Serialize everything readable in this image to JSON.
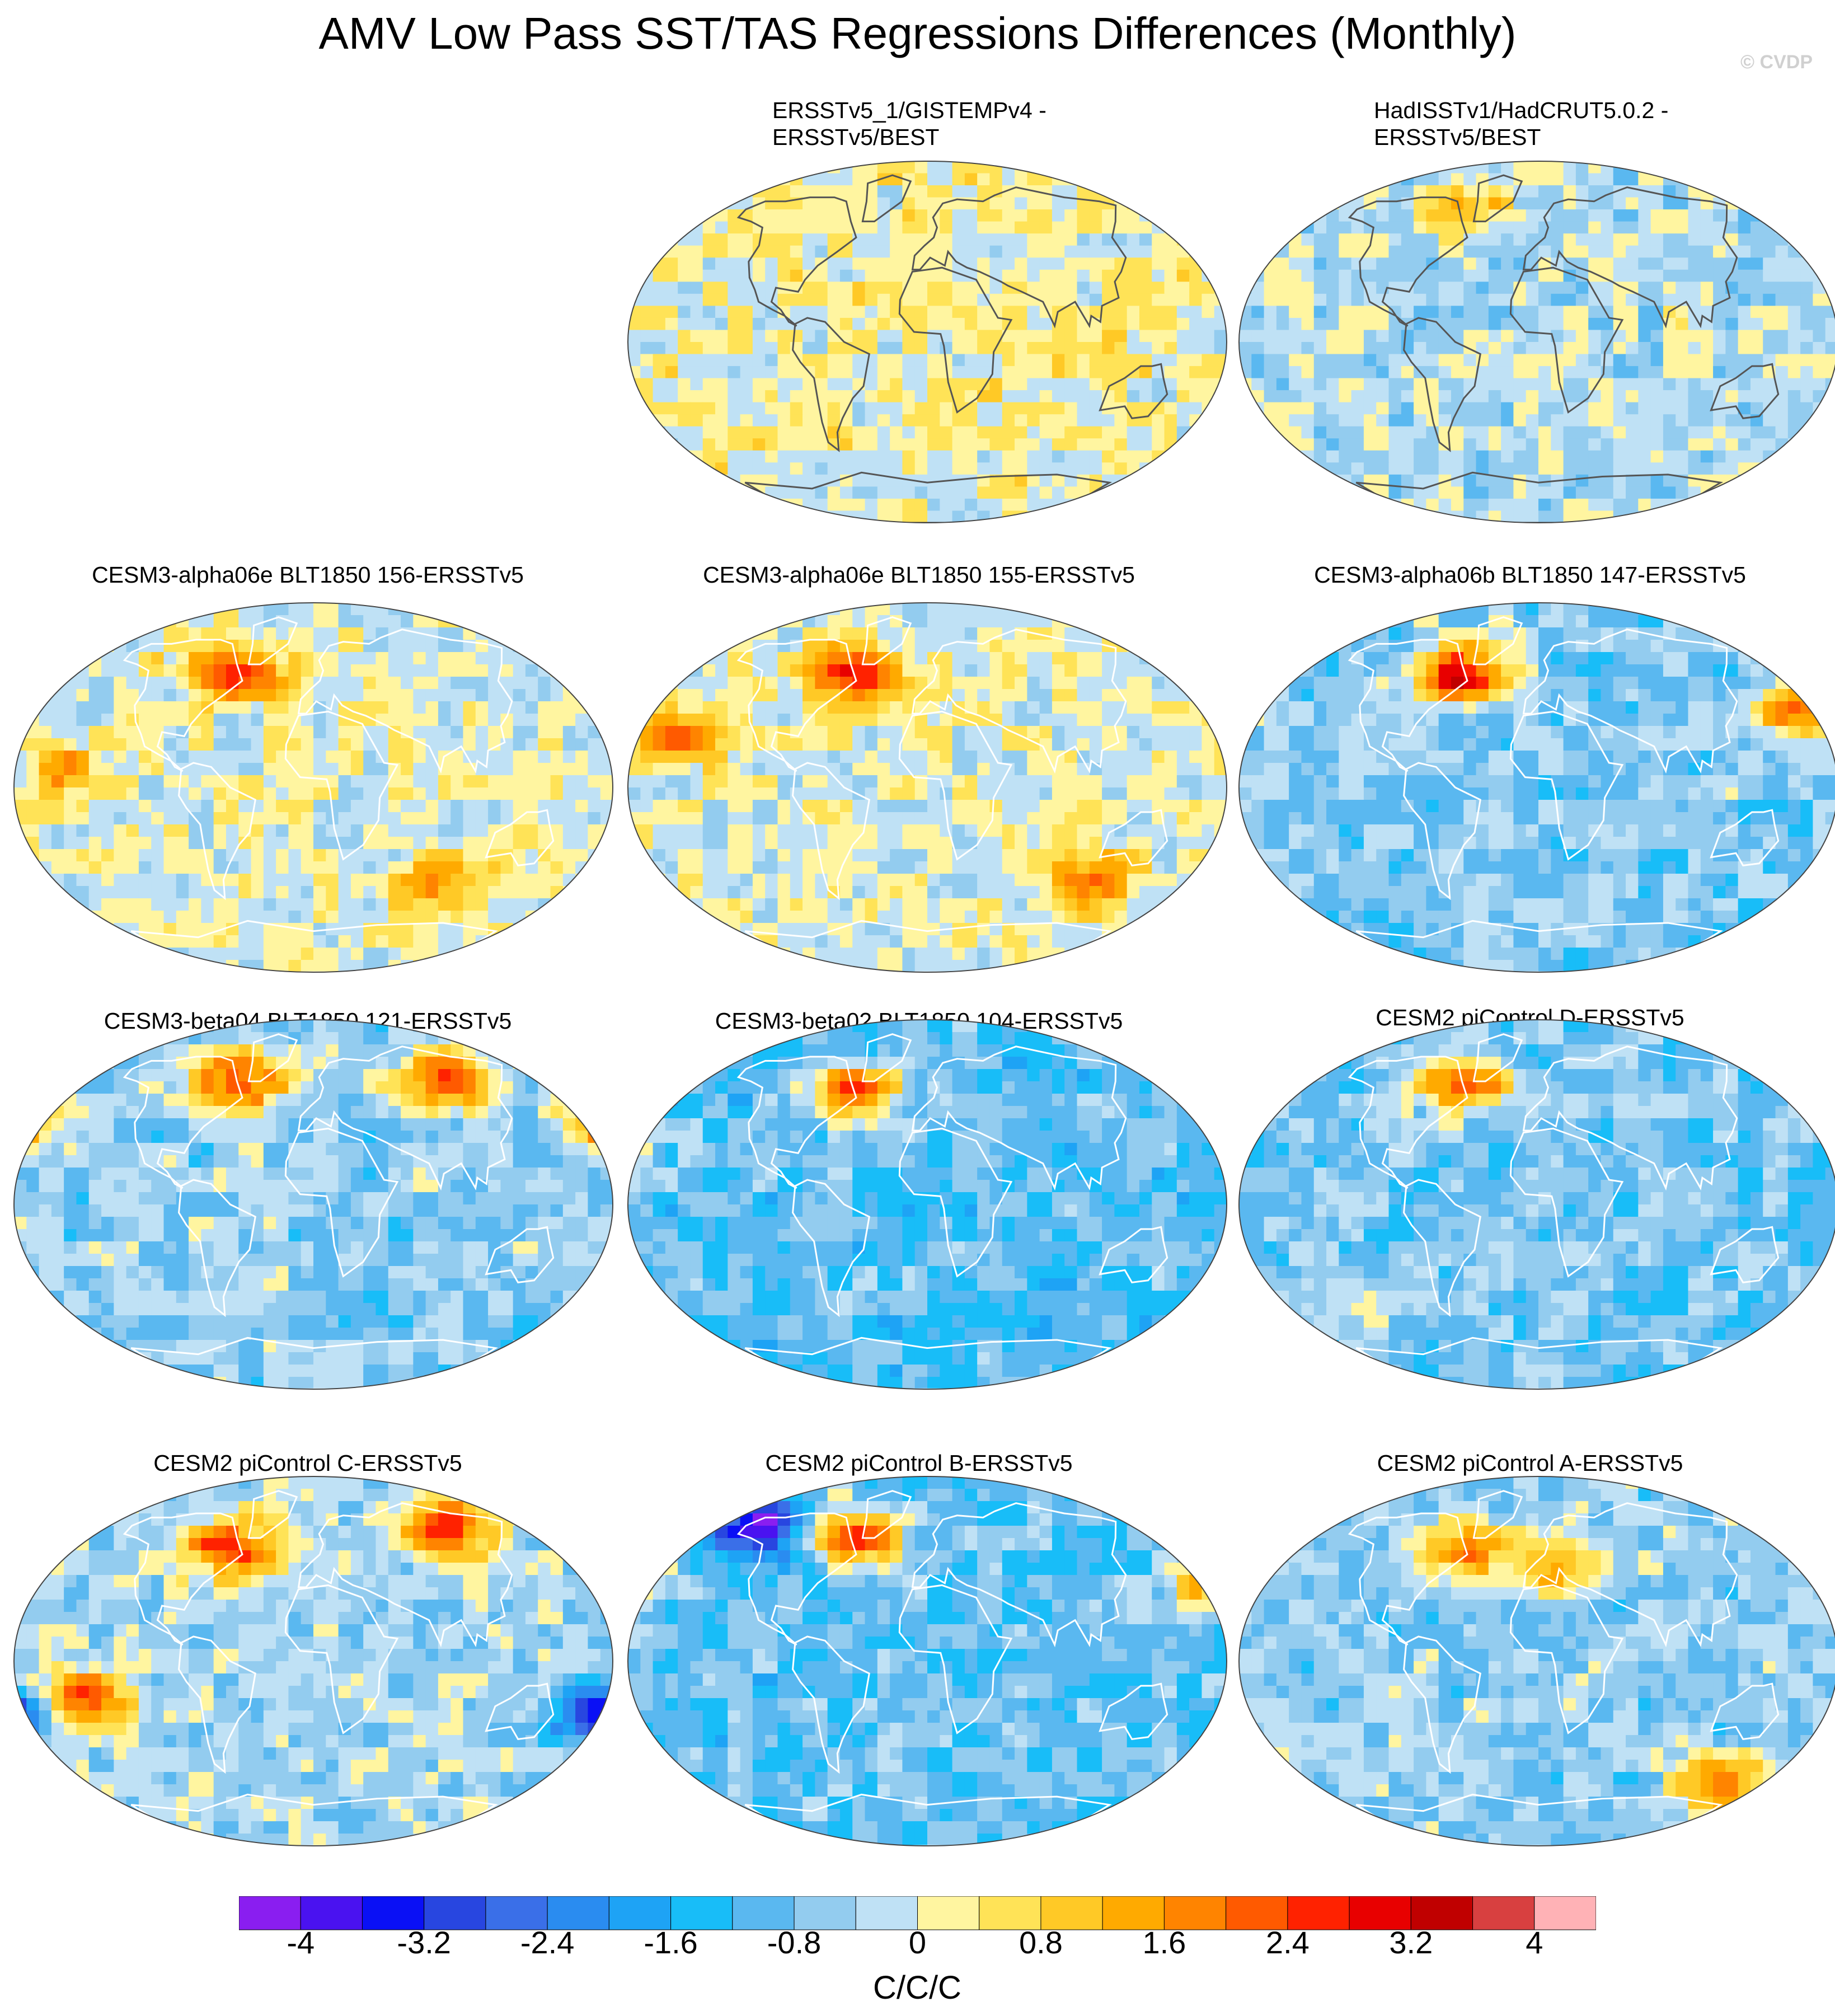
{
  "figure": {
    "title": "AMV Low Pass SST/TAS Regressions Differences (Monthly)",
    "watermark": "© CVDP"
  },
  "chart_data": {
    "type": "heatmap",
    "projection": "Robinson (global map panels)",
    "panels": [
      {
        "title_lines": [
          "ERSSTv5_1/GISTEMPv4 -",
          "ERSSTv5/BEST"
        ],
        "pattern": "weak positive",
        "palette_bias": 0.15,
        "hotspots": []
      },
      {
        "title_lines": [
          "HadISSTv1/HadCRUT5.0.2 -",
          "ERSSTv5/BEST"
        ],
        "pattern": "weak negative with N Atlantic positive",
        "palette_bias": -0.3,
        "hotspots": [
          {
            "lon": -45,
            "lat": 65,
            "value": 1.6
          }
        ]
      },
      {
        "title_lines": [
          "CESM3-alpha06e BLT1850 156-ERSSTv5"
        ],
        "pattern": "positive central Pacific, strong N Atlantic",
        "palette_bias": 0.0,
        "hotspots": [
          {
            "lon": -45,
            "lat": 55,
            "value": 3.0
          },
          {
            "lon": -150,
            "lat": 10,
            "value": 1.2
          },
          {
            "lon": 80,
            "lat": -45,
            "value": 1.6
          }
        ]
      },
      {
        "title_lines": [
          "CESM3-alpha06e BLT1850 155-ERSSTv5"
        ],
        "pattern": "positive NE Pacific, strong N Atlantic",
        "palette_bias": 0.0,
        "hotspots": [
          {
            "lon": -45,
            "lat": 55,
            "value": 2.6
          },
          {
            "lon": -150,
            "lat": 25,
            "value": 2.0
          },
          {
            "lon": 100,
            "lat": -45,
            "value": 1.6
          }
        ]
      },
      {
        "title_lines": [
          "CESM3-alpha06b BLT1850 147-ERSSTv5"
        ],
        "pattern": "negative with Kuroshio and N Atlantic maxima",
        "palette_bias": -0.7,
        "hotspots": [
          {
            "lon": -45,
            "lat": 55,
            "value": 3.6
          },
          {
            "lon": 155,
            "lat": 38,
            "value": 2.8
          }
        ]
      },
      {
        "title_lines": [
          "CESM3-beta04 BLT1850 121-ERSSTv5"
        ],
        "pattern": "positive N Pacific and Eurasia",
        "palette_bias": -0.6,
        "hotspots": [
          {
            "lon": 80,
            "lat": 60,
            "value": 3.0
          },
          {
            "lon": 180,
            "lat": 40,
            "value": 2.4
          },
          {
            "lon": -45,
            "lat": 60,
            "value": 3.2
          }
        ]
      },
      {
        "title_lines": [
          "CESM3-beta02 BLT1850 104-ERSSTv5"
        ],
        "pattern": "negative with N Atlantic maximum",
        "palette_bias": -1.0,
        "hotspots": [
          {
            "lon": -45,
            "lat": 55,
            "value": 3.4
          },
          {
            "lon": -170,
            "lat": 30,
            "value": 0.6
          }
        ]
      },
      {
        "title_lines": [
          "CESM2 piControl D-ERSSTv5"
        ],
        "pattern": "negative with N Atlantic and Southern Ocean positive",
        "palette_bias": -0.8,
        "hotspots": [
          {
            "lon": -45,
            "lat": 58,
            "value": 3.2
          },
          {
            "lon": -110,
            "lat": -45,
            "value": 1.0
          }
        ]
      },
      {
        "title_lines": [
          "CESM2 piControl C-ERSSTv5"
        ],
        "pattern": "dipole S Pacific, strong N Atlantic and Eurasia",
        "palette_bias": -0.4,
        "hotspots": [
          {
            "lon": -140,
            "lat": -20,
            "value": 3.0
          },
          {
            "lon": 175,
            "lat": -25,
            "value": -3.6
          },
          {
            "lon": -50,
            "lat": 55,
            "value": 3.0
          },
          {
            "lon": 80,
            "lat": 65,
            "value": 3.2
          }
        ]
      },
      {
        "title_lines": [
          "CESM2 piControl B-ERSSTv5"
        ],
        "pattern": "negative with N Pacific and N Atlantic positive",
        "palette_bias": -0.9,
        "hotspots": [
          {
            "lon": -45,
            "lat": 60,
            "value": 3.6
          },
          {
            "lon": 170,
            "lat": 38,
            "value": 2.0
          },
          {
            "lon": -100,
            "lat": 65,
            "value": -3.6
          }
        ]
      },
      {
        "title_lines": [
          "CESM2 piControl A-ERSSTv5"
        ],
        "pattern": "mixed, positive N Atlantic",
        "palette_bias": -0.6,
        "hotspots": [
          {
            "lon": -45,
            "lat": 55,
            "value": 2.6
          },
          {
            "lon": 10,
            "lat": 45,
            "value": 2.0
          },
          {
            "lon": 110,
            "lat": -60,
            "value": 2.4
          }
        ]
      }
    ],
    "colorbar": {
      "levels": [
        -4.4,
        -4,
        -3.6,
        -3.2,
        -2.8,
        -2.4,
        -2,
        -1.6,
        -1.2,
        -0.8,
        -0.4,
        0,
        0.4,
        0.8,
        1.2,
        1.6,
        2,
        2.4,
        2.8,
        3.2,
        3.6,
        4,
        4.4
      ],
      "colors": [
        "#8a1ef0",
        "#4a12f0",
        "#0a10f5",
        "#2846e0",
        "#3a6fe8",
        "#2a8cf0",
        "#1ea3f5",
        "#18bdf8",
        "#5ab8f0",
        "#93ccef",
        "#bfe1f5",
        "#fff5a0",
        "#ffe357",
        "#ffc926",
        "#ffaa00",
        "#ff8400",
        "#ff5a00",
        "#ff2200",
        "#e80000",
        "#c00000",
        "#d84040",
        "#ffb2b6"
      ],
      "tick_labels": [
        "-4",
        "-3.2",
        "-2.4",
        "-1.6",
        "-0.8",
        "0",
        "0.8",
        "1.6",
        "2.4",
        "3.2",
        "4"
      ],
      "units": "C/C/C"
    }
  }
}
